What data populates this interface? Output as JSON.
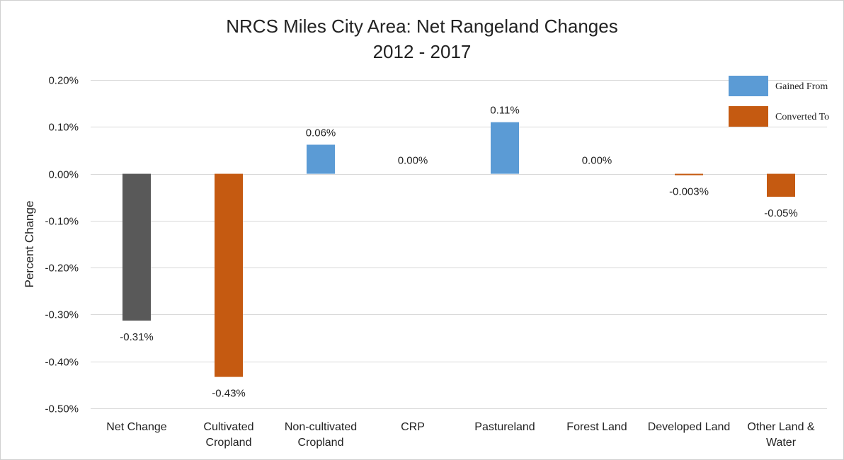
{
  "chart_data": {
    "type": "bar",
    "title": [
      "NRCS Miles City Area: Net Rangeland Changes",
      "2012 - 2017"
    ],
    "ylabel": "Percent Change",
    "xlabel": "",
    "ylim": [
      -0.5,
      0.2
    ],
    "yticks": [
      0.2,
      0.1,
      0.0,
      -0.1,
      -0.2,
      -0.3,
      -0.4,
      -0.5
    ],
    "ytick_labels": [
      "0.20%",
      "0.10%",
      "0.00%",
      "-0.10%",
      "-0.20%",
      "-0.30%",
      "-0.40%",
      "-0.50%"
    ],
    "grid": true,
    "legend_position": "top-right",
    "categories": [
      [
        "Net Change"
      ],
      [
        "Cultivated",
        "Cropland"
      ],
      [
        "Non-cultivated",
        "Cropland"
      ],
      [
        "CRP"
      ],
      [
        "Pastureland"
      ],
      [
        "Forest Land"
      ],
      [
        "Developed Land"
      ],
      [
        "Other Land &",
        "Water"
      ]
    ],
    "values": [
      -0.31,
      -0.43,
      0.06,
      0.0,
      0.11,
      0.0,
      -0.003,
      -0.05
    ],
    "bar_values": [
      -0.313,
      -0.433,
      0.062,
      0.0,
      0.11,
      0.0,
      -0.003,
      -0.049
    ],
    "data_labels": [
      "-0.31%",
      "-0.43%",
      "0.06%",
      "0.00%",
      "0.11%",
      "0.00%",
      "-0.003%",
      "-0.05%"
    ],
    "bar_series": [
      "net",
      "converted",
      "gained",
      "gained",
      "gained",
      "gained",
      "converted",
      "converted"
    ],
    "legend": [
      {
        "key": "gained",
        "label": "Gained From"
      },
      {
        "key": "converted",
        "label": "Converted To"
      }
    ],
    "colors": {
      "net": "#595959",
      "gained": "#5b9bd5",
      "converted": "#c55a11"
    }
  }
}
